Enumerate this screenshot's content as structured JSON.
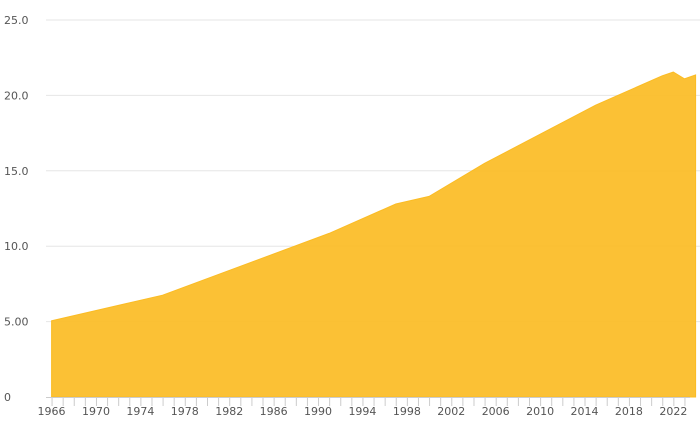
{
  "chart_data": {
    "type": "area",
    "title": "",
    "xlabel": "",
    "ylabel": "",
    "xlim": [
      1965.5,
      2023.5
    ],
    "ylim": [
      0,
      25
    ],
    "grid": true,
    "legend": "none",
    "color": "#fbbc24",
    "y_ticks": [
      0,
      5,
      10,
      15,
      20,
      25
    ],
    "y_tick_labels": [
      "0",
      "5.00",
      "10.0",
      "15.0",
      "20.0",
      "25.0"
    ],
    "x_ticks": [
      1966,
      1970,
      1974,
      1978,
      1982,
      1986,
      1990,
      1994,
      1998,
      2002,
      2006,
      2010,
      2014,
      2018,
      2022
    ],
    "x_tick_labels": [
      "1966",
      "1970",
      "1974",
      "1978",
      "1982",
      "1986",
      "1990",
      "1994",
      "1998",
      "2002",
      "2006",
      "2010",
      "2014",
      "2018",
      "2022"
    ],
    "x": [
      1966,
      1976,
      1991,
      1997,
      2000,
      2005,
      2015,
      2021,
      2022,
      2023,
      2024
    ],
    "values": [
      5.05,
      6.75,
      10.85,
      12.8,
      13.3,
      15.5,
      19.35,
      21.3,
      21.55,
      21.1,
      21.35
    ]
  }
}
